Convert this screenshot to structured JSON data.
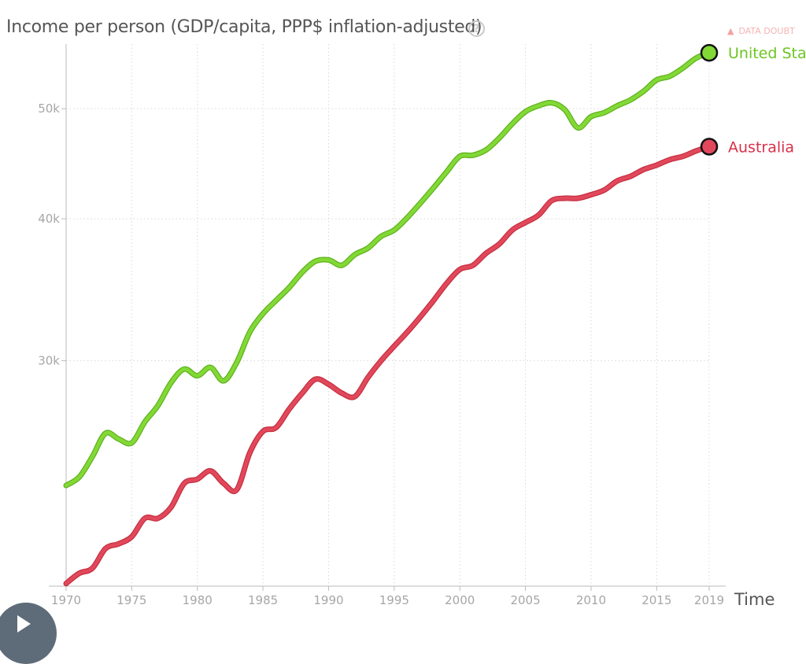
{
  "header": {
    "title": "Income per person (GDP/capita, PPP$ inflation-adjusted)",
    "help_icon": "question-circle-icon",
    "data_doubts_label": "DATA DOUBT",
    "warning_icon": "warning-triangle-icon"
  },
  "controls": {
    "time_label": "Time",
    "play_icon": "play-icon"
  },
  "chart_data": {
    "type": "line",
    "title": "Income per person (GDP/capita, PPP$ inflation-adjusted)",
    "xlabel": "Time",
    "ylabel": "",
    "y_scale": "log",
    "xlim": [
      1970,
      2019
    ],
    "ylim": [
      19000,
      57000
    ],
    "x_ticks": [
      1970,
      1975,
      1980,
      1985,
      1990,
      1995,
      2000,
      2005,
      2010,
      2015,
      2019
    ],
    "y_ticks": [
      {
        "value": 30000,
        "label": "30k"
      },
      {
        "value": 40000,
        "label": "40k"
      },
      {
        "value": 50000,
        "label": "50k"
      }
    ],
    "grid": true,
    "colors": {
      "United States": "#82d936",
      "Australia": "#e2485c"
    },
    "x": [
      1970,
      1971,
      1972,
      1973,
      1974,
      1975,
      1976,
      1977,
      1978,
      1979,
      1980,
      1981,
      1982,
      1983,
      1984,
      1985,
      1986,
      1987,
      1988,
      1989,
      1990,
      1991,
      1992,
      1993,
      1994,
      1995,
      1996,
      1997,
      1998,
      1999,
      2000,
      2001,
      2002,
      2003,
      2004,
      2005,
      2006,
      2007,
      2008,
      2009,
      2010,
      2011,
      2012,
      2013,
      2014,
      2015,
      2016,
      2017,
      2018,
      2019
    ],
    "series": [
      {
        "name": "United Sta.",
        "values": [
          23300,
          23700,
          24700,
          25900,
          25600,
          25400,
          26500,
          27400,
          28700,
          29500,
          29100,
          29600,
          28800,
          29900,
          31800,
          33000,
          33900,
          34800,
          35900,
          36700,
          36800,
          36400,
          37200,
          37700,
          38600,
          39100,
          40100,
          41300,
          42600,
          44000,
          45400,
          45500,
          46000,
          47100,
          48500,
          49700,
          50300,
          50600,
          49900,
          48100,
          49200,
          49600,
          50300,
          50900,
          51800,
          53000,
          53400,
          54300,
          55400,
          56000
        ]
      },
      {
        "name": "Australia",
        "values": [
          19100,
          19500,
          19700,
          20500,
          20700,
          21000,
          21800,
          21800,
          22300,
          23400,
          23600,
          24000,
          23400,
          23100,
          24900,
          26000,
          26200,
          27200,
          28100,
          28900,
          28600,
          28100,
          27900,
          29000,
          30000,
          30900,
          31800,
          32800,
          33900,
          35100,
          36100,
          36400,
          37300,
          38000,
          39100,
          39700,
          40300,
          41500,
          41700,
          41700,
          42000,
          42400,
          43200,
          43600,
          44200,
          44600,
          45100,
          45400,
          45900,
          46300
        ]
      }
    ]
  }
}
